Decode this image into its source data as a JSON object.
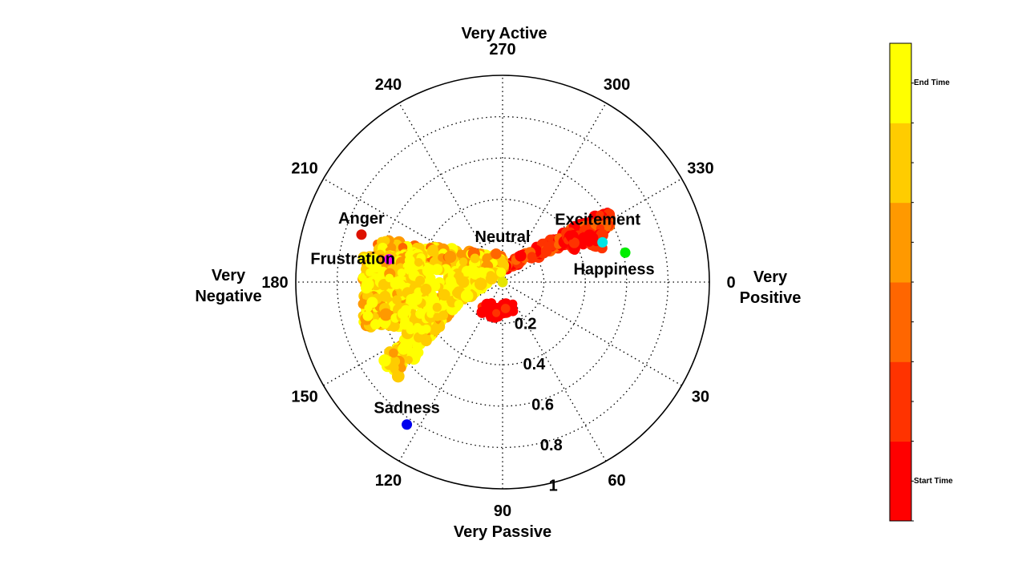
{
  "chart_data": {
    "type": "scatter",
    "projection": "polar",
    "theta_direction": "clockwise",
    "theta_zero": "right",
    "r_range": [
      0,
      1
    ],
    "grid": true,
    "r_ticks": [
      "0.2",
      "0.4",
      "0.6",
      "0.8",
      "1"
    ],
    "theta_ticks": [
      "0",
      "30",
      "60",
      "90",
      "120",
      "150",
      "180",
      "210",
      "240",
      "270",
      "300",
      "330"
    ],
    "direction_labels": {
      "top": "Very Active",
      "bottom": "Very Passive",
      "left": [
        "Very",
        "Negative"
      ],
      "right": [
        "Very",
        "Positive"
      ]
    },
    "emotions": [
      {
        "name": "Neutral",
        "theta": 90,
        "r": 0.0,
        "color": "#e6e600"
      },
      {
        "name": "Excitement",
        "theta": 338.3,
        "r": 0.52,
        "color": "#00e5e5"
      },
      {
        "name": "Happiness",
        "theta": 346.5,
        "r": 0.61,
        "color": "#00ee00"
      },
      {
        "name": "Anger",
        "theta": 198.6,
        "r": 0.72,
        "color": "#dd1100"
      },
      {
        "name": "Frustration",
        "theta": 191.4,
        "r": 0.56,
        "color": "#ee00ee"
      },
      {
        "name": "Sadness",
        "theta": 123.9,
        "r": 0.83,
        "color": "#0000ee"
      }
    ],
    "trajectory": {
      "description_regions": [
        {
          "name": "left-cluster",
          "theta_range": [
            150,
            215
          ],
          "r_range": [
            0.25,
            0.68
          ]
        },
        {
          "name": "lower-branch",
          "theta_range": [
            115,
            150
          ],
          "r_range": [
            0.3,
            0.6
          ]
        },
        {
          "name": "right-branch",
          "theta_range": [
            330,
            355
          ],
          "r_range": [
            0.05,
            0.55
          ]
        },
        {
          "name": "lower-right-blob",
          "theta_range": [
            100,
            125
          ],
          "r_range": [
            0.13,
            0.17
          ]
        }
      ]
    },
    "colorbar": {
      "colors": [
        "#ff0000",
        "#ff3300",
        "#ff6600",
        "#ff9900",
        "#ffcc00",
        "#ffff00"
      ],
      "bottom_label": "Start Time",
      "top_label": "End Time",
      "range": [
        0,
        1
      ]
    }
  }
}
